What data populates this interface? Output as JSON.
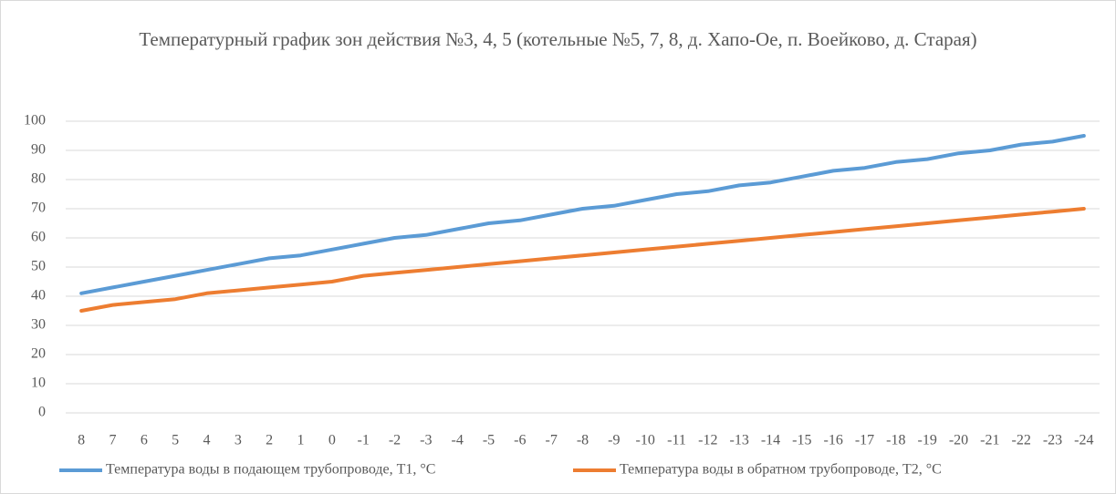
{
  "chart_data": {
    "type": "line",
    "title": "Температурный график зон действия №3, 4, 5 (котельные №5, 7, 8, д. Хапо-Ое, п. Воейково, д. Старая)",
    "categories": [
      "8",
      "7",
      "6",
      "5",
      "4",
      "3",
      "2",
      "1",
      "0",
      "-1",
      "-2",
      "-3",
      "-4",
      "-5",
      "-6",
      "-7",
      "-8",
      "-9",
      "-10",
      "-11",
      "-12",
      "-13",
      "-14",
      "-15",
      "-16",
      "-17",
      "-18",
      "-19",
      "-20",
      "-21",
      "-22",
      "-23",
      "-24"
    ],
    "series": [
      {
        "name": "Температура воды в подающем трубопроводе, Т1, °С",
        "color": "#5b9bd5",
        "values": [
          41,
          43,
          45,
          47,
          49,
          51,
          53,
          54,
          56,
          58,
          60,
          61,
          63,
          65,
          66,
          68,
          70,
          71,
          73,
          75,
          76,
          78,
          79,
          81,
          83,
          84,
          86,
          87,
          89,
          90,
          92,
          93,
          95
        ]
      },
      {
        "name": "Температура воды в обратном трубопроводе, Т2, °С",
        "color": "#ed7d31",
        "values": [
          35,
          37,
          38,
          39,
          41,
          42,
          43,
          44,
          45,
          47,
          48,
          49,
          50,
          51,
          52,
          53,
          54,
          55,
          56,
          57,
          58,
          59,
          60,
          61,
          62,
          63,
          64,
          65,
          66,
          67,
          68,
          69,
          70
        ]
      }
    ],
    "ylim": [
      0,
      100
    ],
    "yticks": [
      0,
      10,
      20,
      30,
      40,
      50,
      60,
      70,
      80,
      90,
      100
    ],
    "grid": true,
    "legend": "bottom"
  }
}
